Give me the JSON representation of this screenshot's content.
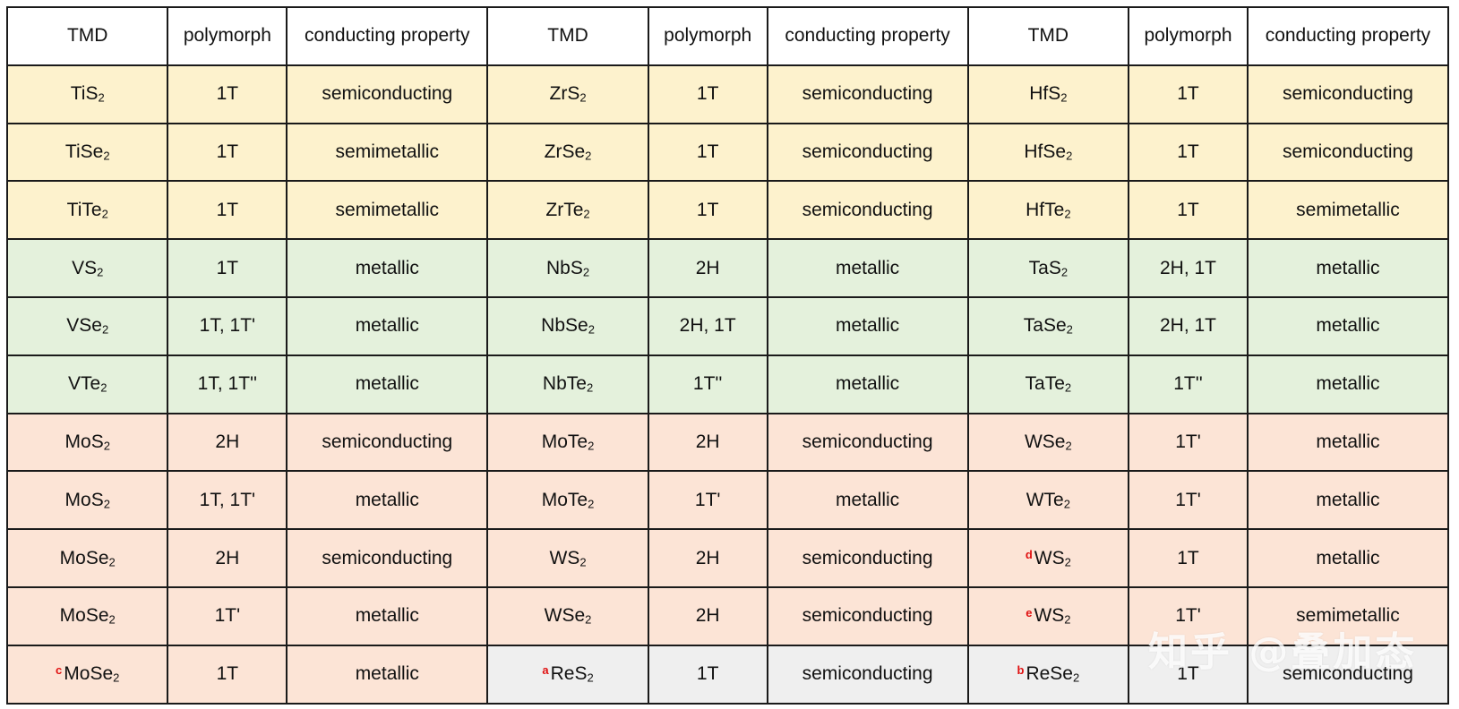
{
  "colors": {
    "header": "#ffffff",
    "yellow": "#fdf2cd",
    "green": "#e4f1dc",
    "salmon": "#fce4d6",
    "gray": "#efefef",
    "mark": "#e01010",
    "border": "#1a1a1a"
  },
  "header": [
    "TMD",
    "polymorph",
    "conducting property",
    "TMD",
    "polymorph",
    "conducting property",
    "TMD",
    "polymorph",
    "conducting property"
  ],
  "rows": [
    {
      "bg": [
        "yellow",
        "yellow",
        "yellow",
        "yellow",
        "yellow",
        "yellow",
        "yellow",
        "yellow",
        "yellow"
      ],
      "cells": [
        {
          "base": "TiS",
          "sub": "2"
        },
        {
          "text": "1T"
        },
        {
          "text": "semiconducting"
        },
        {
          "base": "ZrS",
          "sub": "2"
        },
        {
          "text": "1T"
        },
        {
          "text": "semiconducting"
        },
        {
          "base": "HfS",
          "sub": "2"
        },
        {
          "text": "1T"
        },
        {
          "text": "semiconducting"
        }
      ]
    },
    {
      "bg": [
        "yellow",
        "yellow",
        "yellow",
        "yellow",
        "yellow",
        "yellow",
        "yellow",
        "yellow",
        "yellow"
      ],
      "cells": [
        {
          "base": "TiSe",
          "sub": "2"
        },
        {
          "text": "1T"
        },
        {
          "text": "semimetallic"
        },
        {
          "base": "ZrSe",
          "sub": "2"
        },
        {
          "text": "1T"
        },
        {
          "text": "semiconducting"
        },
        {
          "base": "HfSe",
          "sub": "2"
        },
        {
          "text": "1T"
        },
        {
          "text": "semiconducting"
        }
      ]
    },
    {
      "bg": [
        "yellow",
        "yellow",
        "yellow",
        "yellow",
        "yellow",
        "yellow",
        "yellow",
        "yellow",
        "yellow"
      ],
      "cells": [
        {
          "base": "TiTe",
          "sub": "2"
        },
        {
          "text": "1T"
        },
        {
          "text": "semimetallic"
        },
        {
          "base": "ZrTe",
          "sub": "2"
        },
        {
          "text": "1T"
        },
        {
          "text": "semiconducting"
        },
        {
          "base": "HfTe",
          "sub": "2"
        },
        {
          "text": "1T"
        },
        {
          "text": "semimetallic"
        }
      ]
    },
    {
      "bg": [
        "green",
        "green",
        "green",
        "green",
        "green",
        "green",
        "green",
        "green",
        "green"
      ],
      "cells": [
        {
          "base": "VS",
          "sub": "2"
        },
        {
          "text": "1T"
        },
        {
          "text": "metallic"
        },
        {
          "base": "NbS",
          "sub": "2"
        },
        {
          "text": "2H"
        },
        {
          "text": "metallic"
        },
        {
          "base": "TaS",
          "sub": "2"
        },
        {
          "text": "2H, 1T"
        },
        {
          "text": "metallic"
        }
      ]
    },
    {
      "bg": [
        "green",
        "green",
        "green",
        "green",
        "green",
        "green",
        "green",
        "green",
        "green"
      ],
      "cells": [
        {
          "base": "VSe",
          "sub": "2"
        },
        {
          "text": "1T, 1T'"
        },
        {
          "text": "metallic"
        },
        {
          "base": "NbSe",
          "sub": "2"
        },
        {
          "text": "2H, 1T"
        },
        {
          "text": "metallic"
        },
        {
          "base": "TaSe",
          "sub": "2"
        },
        {
          "text": "2H, 1T"
        },
        {
          "text": "metallic"
        }
      ]
    },
    {
      "bg": [
        "green",
        "green",
        "green",
        "green",
        "green",
        "green",
        "green",
        "green",
        "green"
      ],
      "cells": [
        {
          "base": "VTe",
          "sub": "2"
        },
        {
          "text": "1T, 1T''"
        },
        {
          "text": "metallic"
        },
        {
          "base": "NbTe",
          "sub": "2"
        },
        {
          "text": "1T''"
        },
        {
          "text": "metallic"
        },
        {
          "base": "TaTe",
          "sub": "2"
        },
        {
          "text": "1T''"
        },
        {
          "text": "metallic"
        }
      ]
    },
    {
      "bg": [
        "salmon",
        "salmon",
        "salmon",
        "salmon",
        "salmon",
        "salmon",
        "salmon",
        "salmon",
        "salmon"
      ],
      "cells": [
        {
          "base": "MoS",
          "sub": "2"
        },
        {
          "text": "2H"
        },
        {
          "text": "semiconducting"
        },
        {
          "base": "MoTe",
          "sub": "2"
        },
        {
          "text": "2H"
        },
        {
          "text": "semiconducting"
        },
        {
          "base": "WSe",
          "sub": "2"
        },
        {
          "text": "1T'"
        },
        {
          "text": "metallic"
        }
      ]
    },
    {
      "bg": [
        "salmon",
        "salmon",
        "salmon",
        "salmon",
        "salmon",
        "salmon",
        "salmon",
        "salmon",
        "salmon"
      ],
      "cells": [
        {
          "base": "MoS",
          "sub": "2"
        },
        {
          "text": "1T, 1T'"
        },
        {
          "text": "metallic"
        },
        {
          "base": "MoTe",
          "sub": "2"
        },
        {
          "text": "1T'"
        },
        {
          "text": "metallic"
        },
        {
          "base": "WTe",
          "sub": "2"
        },
        {
          "text": "1T'"
        },
        {
          "text": "metallic"
        }
      ]
    },
    {
      "bg": [
        "salmon",
        "salmon",
        "salmon",
        "salmon",
        "salmon",
        "salmon",
        "salmon",
        "salmon",
        "salmon"
      ],
      "cells": [
        {
          "base": "MoSe",
          "sub": "2"
        },
        {
          "text": "2H"
        },
        {
          "text": "semiconducting"
        },
        {
          "base": "WS",
          "sub": "2"
        },
        {
          "text": "2H"
        },
        {
          "text": "semiconducting"
        },
        {
          "mark": "d",
          "base": "WS",
          "sub": "2"
        },
        {
          "text": "1T"
        },
        {
          "text": "metallic"
        }
      ]
    },
    {
      "bg": [
        "salmon",
        "salmon",
        "salmon",
        "salmon",
        "salmon",
        "salmon",
        "salmon",
        "salmon",
        "salmon"
      ],
      "cells": [
        {
          "base": "MoSe",
          "sub": "2"
        },
        {
          "text": "1T'"
        },
        {
          "text": "metallic"
        },
        {
          "base": "WSe",
          "sub": "2"
        },
        {
          "text": "2H"
        },
        {
          "text": "semiconducting"
        },
        {
          "mark": "e",
          "base": "WS",
          "sub": "2"
        },
        {
          "text": "1T'"
        },
        {
          "text": "semimetallic"
        }
      ]
    },
    {
      "bg": [
        "salmon",
        "salmon",
        "salmon",
        "gray",
        "gray",
        "gray",
        "gray",
        "gray",
        "gray"
      ],
      "cells": [
        {
          "mark": "c",
          "base": "MoSe",
          "sub": "2"
        },
        {
          "text": "1T"
        },
        {
          "text": "metallic"
        },
        {
          "mark": "a",
          "base": "ReS",
          "sub": "2"
        },
        {
          "text": "1T"
        },
        {
          "text": "semiconducting"
        },
        {
          "mark": "b",
          "base": "ReSe",
          "sub": "2"
        },
        {
          "text": "1T"
        },
        {
          "text": "semiconducting"
        }
      ]
    }
  ],
  "watermark": "知乎 @叠加态"
}
